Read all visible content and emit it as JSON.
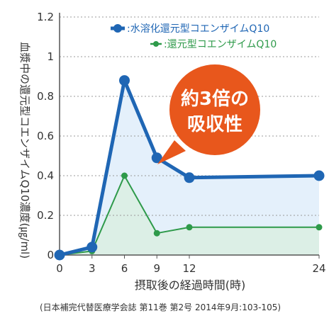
{
  "chart_data": {
    "type": "line",
    "x": [
      0,
      3,
      6,
      9,
      12,
      24
    ],
    "xticks": [
      "0",
      "3",
      "6",
      "9",
      "12",
      "24"
    ],
    "yticks": [
      "0",
      "0.2",
      "0.4",
      "0.6",
      "0.8",
      "1",
      "1.2"
    ],
    "ylim": [
      0,
      1.2
    ],
    "xlabel": "摂取後の経過時間(時)",
    "ylabel": "血漿中の還元型コエンザイムQ10濃度(㎍/ml)",
    "legend_position": "top-right",
    "series": [
      {
        "name": ":水溶化還元型コエンザイムQ10",
        "color": "#1f66b4",
        "fill": "#e4f0fb",
        "values": [
          0,
          0.04,
          0.88,
          0.49,
          0.39,
          0.4
        ]
      },
      {
        "name": ":還元型コエンザイムQ10",
        "color": "#2e9a4a",
        "fill": "#dcefe6",
        "values": [
          0,
          0.02,
          0.4,
          0.11,
          0.14,
          0.14
        ]
      }
    ],
    "annotation": {
      "line1": "約3倍の",
      "line2": "吸収性",
      "color": "#e8571c"
    }
  },
  "source_text": "(日本補完代替医療学会誌 第11巻 第2号 2014年9月:103-105)"
}
